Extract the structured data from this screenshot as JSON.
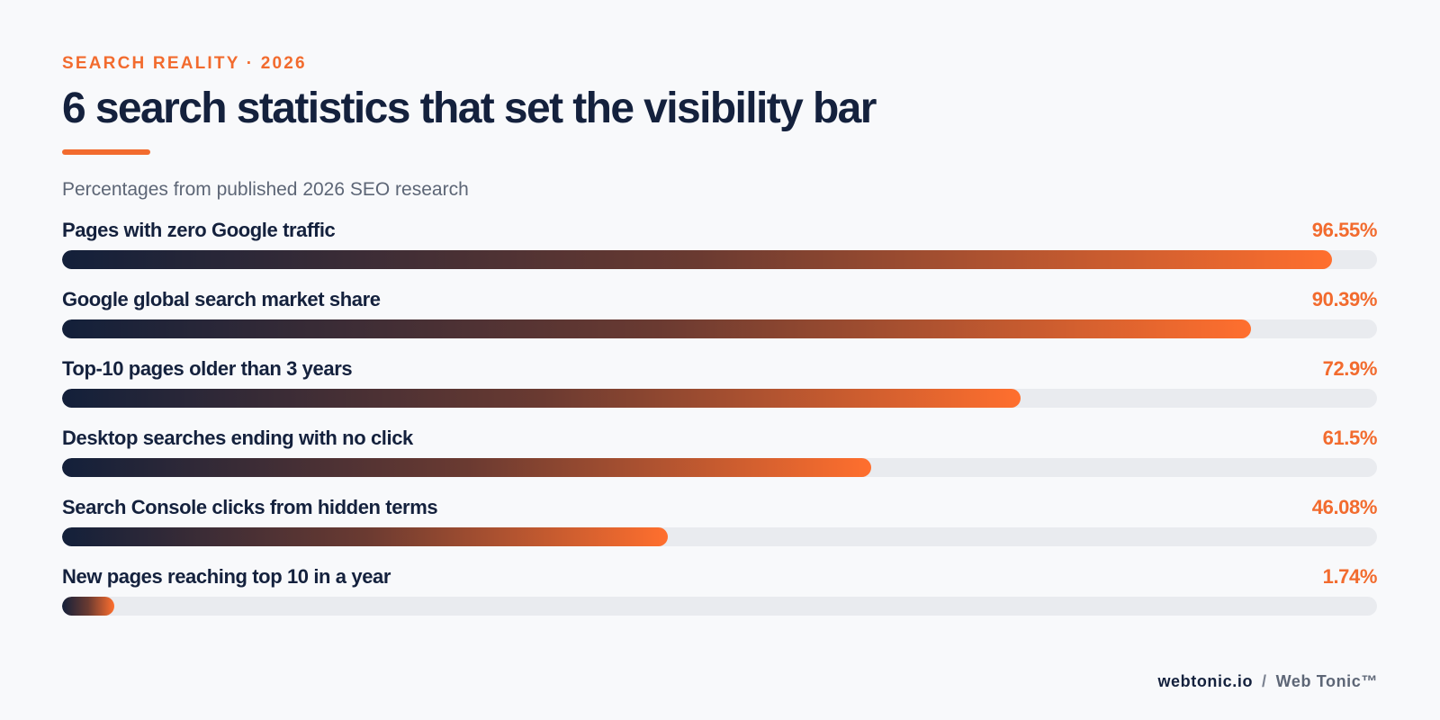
{
  "header": {
    "eyebrow": "SEARCH REALITY · 2026",
    "title": "6 search statistics that set the visibility bar",
    "subtitle": "Percentages from published 2026 SEO research"
  },
  "colors": {
    "accent": "#f26b2e",
    "navy": "#14213d",
    "track": "#e9ebef",
    "gradient_start": "#13203a",
    "gradient_end": "#ff6f2e"
  },
  "chart_data": {
    "type": "bar",
    "orientation": "horizontal",
    "title": "6 search statistics that set the visibility bar",
    "subtitle": "Percentages from published 2026 SEO research",
    "xlim": [
      0,
      100
    ],
    "grid": false,
    "categories": [
      "Pages with zero Google traffic",
      "Google global search market share",
      "Top-10 pages older than 3 years",
      "Desktop searches ending with no click",
      "Search Console clicks from hidden terms",
      "New pages reaching top 10 in a year"
    ],
    "values": [
      96.55,
      90.39,
      72.9,
      61.5,
      46.08,
      1.74
    ],
    "value_labels": [
      "96.55%",
      "90.39%",
      "72.9%",
      "61.5%",
      "46.08%",
      "1.74%"
    ]
  },
  "footer": {
    "domain": "webtonic.io",
    "separator": "/",
    "brand": "Web Tonic™"
  }
}
